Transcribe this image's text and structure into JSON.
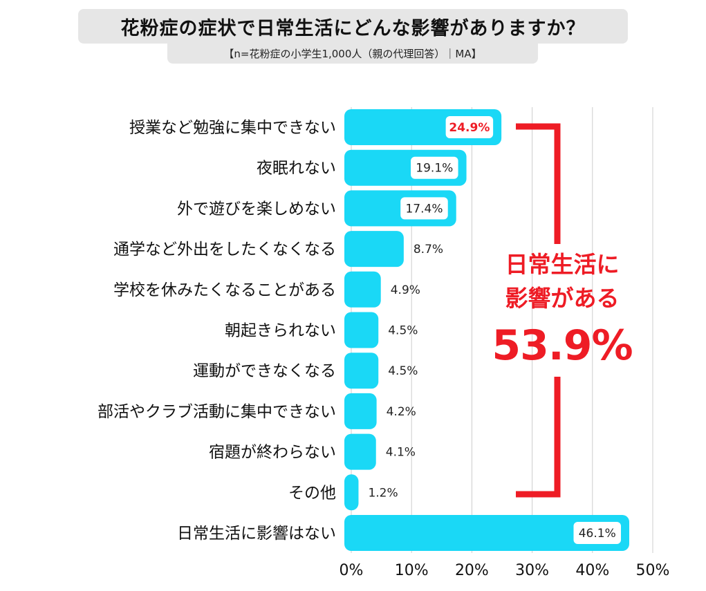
{
  "title": "花粉症の症状で日常生活にどんな影響がありますか？",
  "subtitle": "【n=花粉症の小学生1,000人（親の代理回答）｜MA】",
  "callout": {
    "line1": "日常生活に",
    "line2": "影響がある",
    "value": "53.9%"
  },
  "colors": {
    "bar": "#1ad8f6",
    "highlight": "#ee1c25",
    "grid": "#cccccc",
    "title_bg": "#e6e6e6"
  },
  "chart_data": {
    "type": "bar",
    "orientation": "horizontal",
    "categories": [
      "授業など勉強に集中できない",
      "夜眠れない",
      "外で遊びを楽しめない",
      "通学など外出をしたくなくなる",
      "学校を休みたくなることがある",
      "朝起きられない",
      "運動ができなくなる",
      "部活やクラブ活動に集中できない",
      "宿題が終わらない",
      "その他",
      "日常生活に影響はない"
    ],
    "values": [
      24.9,
      19.1,
      17.4,
      8.7,
      4.9,
      4.5,
      4.5,
      4.2,
      4.1,
      1.2,
      46.1
    ],
    "value_labels": [
      "24.9%",
      "19.1%",
      "17.4%",
      "8.7%",
      "4.9%",
      "4.5%",
      "4.5%",
      "4.2%",
      "4.1%",
      "1.2%",
      "46.1%"
    ],
    "highlight_index": 0,
    "xlim": [
      0,
      50
    ],
    "xticks": [
      "0%",
      "10%",
      "20%",
      "30%",
      "40%",
      "50%"
    ],
    "grid": true
  }
}
